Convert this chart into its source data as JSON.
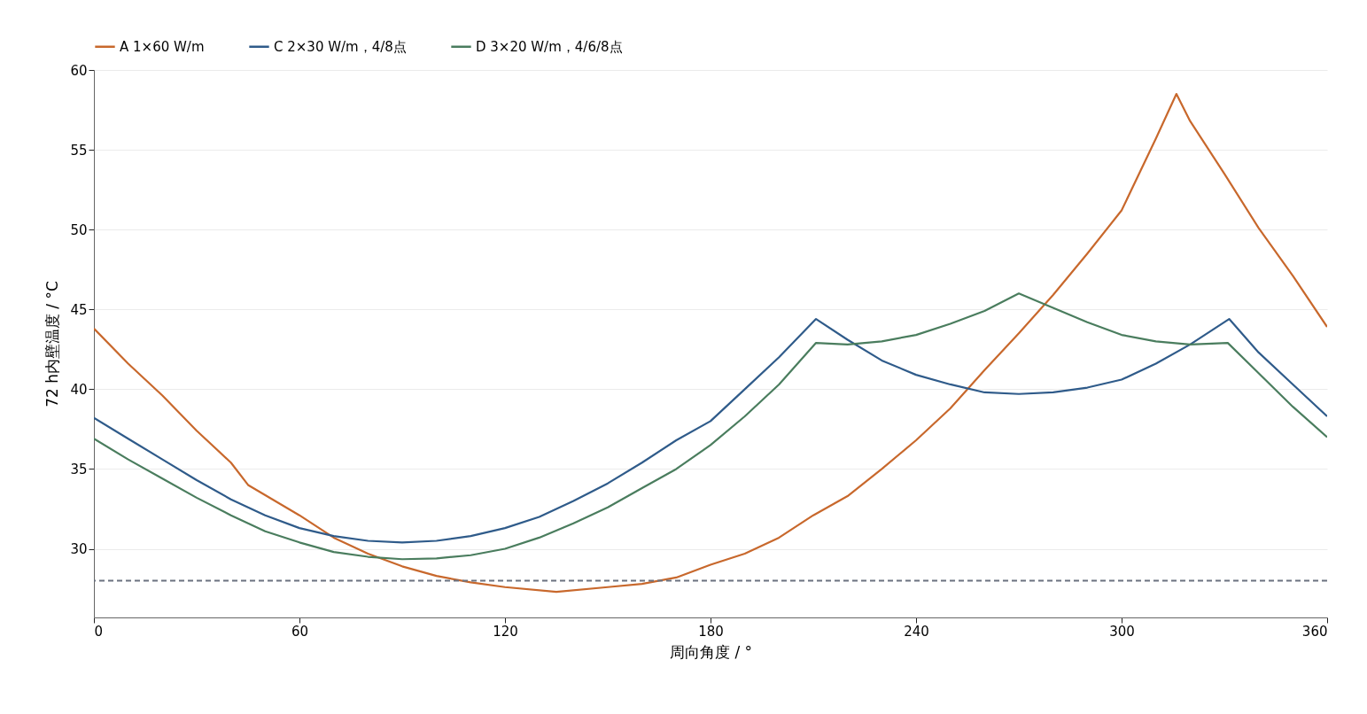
{
  "chart_data": {
    "type": "line",
    "xlabel": "周向角度 / °",
    "ylabel": "72 h内壁温度 / °C",
    "xlim": [
      0,
      360
    ],
    "xticks": [
      0,
      60,
      120,
      180,
      240,
      300,
      360
    ],
    "ylim": [
      25.7,
      60
    ],
    "yticks": [
      30,
      35,
      40,
      45,
      50,
      55,
      60
    ],
    "grid": "y",
    "legend": "top",
    "series": [
      {
        "name": "A  1×60 W/m",
        "color": "#c8682c",
        "x": [
          0,
          10,
          20,
          30,
          40,
          45,
          60,
          70,
          80,
          90,
          100,
          110,
          120,
          135,
          150,
          160,
          170,
          180,
          190,
          200,
          210,
          220,
          230,
          240,
          250,
          260,
          270,
          280,
          290,
          300,
          310,
          316,
          320,
          330,
          340,
          350,
          360
        ],
        "values": [
          43.8,
          41.6,
          39.6,
          37.4,
          35.4,
          34.0,
          32.1,
          30.7,
          29.7,
          28.9,
          28.3,
          27.9,
          27.6,
          27.3,
          27.6,
          27.8,
          28.2,
          29.0,
          29.7,
          30.7,
          32.1,
          33.3,
          35.0,
          36.8,
          38.8,
          41.2,
          43.5,
          45.9,
          48.5,
          51.2,
          55.7,
          58.5,
          56.8,
          53.5,
          50.1,
          47.1,
          43.9
        ]
      },
      {
        "name": "C  2×30 W/m，4/8点",
        "color": "#2f5b8a",
        "x": [
          0,
          10,
          20,
          30,
          40,
          50,
          60,
          70,
          80,
          90,
          100,
          110,
          120,
          130,
          140,
          150,
          160,
          170,
          180,
          190,
          200,
          210.8,
          220,
          230,
          240,
          250,
          260,
          270,
          280,
          290,
          300,
          310,
          320,
          331.4,
          340,
          350,
          360
        ],
        "values": [
          38.2,
          36.9,
          35.6,
          34.3,
          33.1,
          32.1,
          31.3,
          30.8,
          30.5,
          30.4,
          30.5,
          30.8,
          31.3,
          32.0,
          33.0,
          34.1,
          35.4,
          36.8,
          38.0,
          40.0,
          42.0,
          44.4,
          43.1,
          41.8,
          40.9,
          40.3,
          39.8,
          39.7,
          39.8,
          40.1,
          40.6,
          41.6,
          42.8,
          44.4,
          42.3,
          40.3,
          38.3
        ]
      },
      {
        "name": "D  3×20 W/m，4/6/8点",
        "color": "#4a7d5e",
        "x": [
          0,
          10,
          20,
          30,
          40,
          50,
          60,
          70,
          80,
          90,
          100,
          110,
          120,
          130,
          140,
          150,
          160,
          170,
          180,
          190,
          200,
          210.8,
          220,
          230,
          240,
          250,
          260,
          270,
          280,
          290,
          300,
          310,
          320,
          331,
          340,
          350,
          360
        ],
        "values": [
          36.9,
          35.6,
          34.4,
          33.2,
          32.1,
          31.1,
          30.4,
          29.8,
          29.5,
          29.35,
          29.4,
          29.6,
          30.0,
          30.7,
          31.6,
          32.6,
          33.8,
          35.0,
          36.5,
          38.3,
          40.3,
          42.9,
          42.8,
          43.0,
          43.4,
          44.1,
          44.9,
          46.0,
          45.1,
          44.2,
          43.4,
          43.0,
          42.8,
          42.9,
          41.0,
          38.9,
          37.0
        ]
      }
    ],
    "ref_lines": [
      {
        "axis": "y",
        "value": 28,
        "color": "#6b7280",
        "line_style": "dashed"
      }
    ]
  }
}
